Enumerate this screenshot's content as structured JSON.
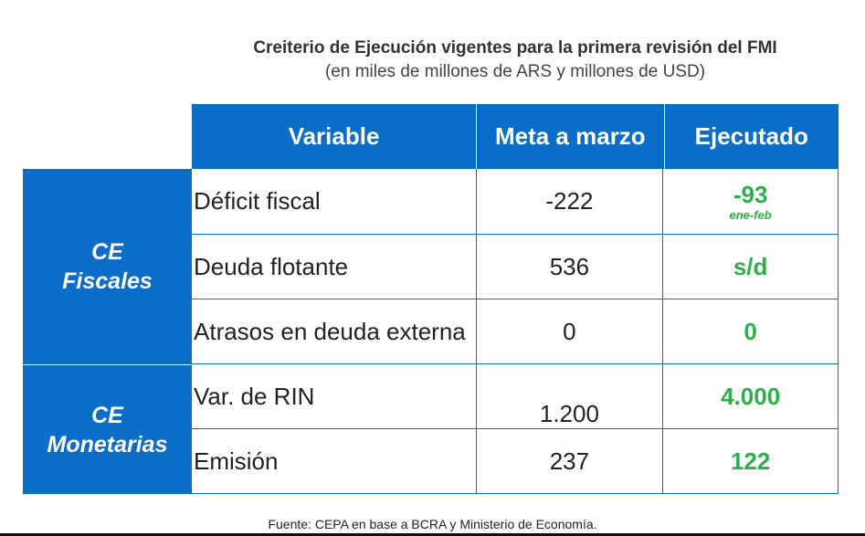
{
  "title": "Creiterio de Ejecución vigentes para la primera revisión del FMI",
  "subtitle": "(en miles de millones de ARS y millones de USD)",
  "table": {
    "headers": [
      "Variable",
      "Meta a marzo",
      "Ejecutado"
    ],
    "groups": [
      {
        "line1": "CE",
        "line2": "Fiscales"
      },
      {
        "line1": "CE",
        "line2": "Monetarias"
      }
    ],
    "rows": [
      {
        "variable": "Déficit fiscal",
        "meta": "-222",
        "ejecutado": "-93",
        "note": "ene-feb"
      },
      {
        "variable": "Deuda flotante",
        "meta": "536",
        "ejecutado": "s/d"
      },
      {
        "variable": "Atrasos en deuda externa",
        "meta": "0",
        "ejecutado": "0"
      },
      {
        "variable": "Var. de RIN",
        "meta": "1.200",
        "ejecutado": "4.000"
      },
      {
        "variable": "Emisión",
        "meta": "237",
        "ejecutado": "122"
      }
    ]
  },
  "footnote": "Fuente: CEPA en base a BCRA y Ministerio de Economía.",
  "colors": {
    "header_bg": "#0a6dc7",
    "ejecutado_text": "#2db04b",
    "border": "#0a6dc7"
  }
}
